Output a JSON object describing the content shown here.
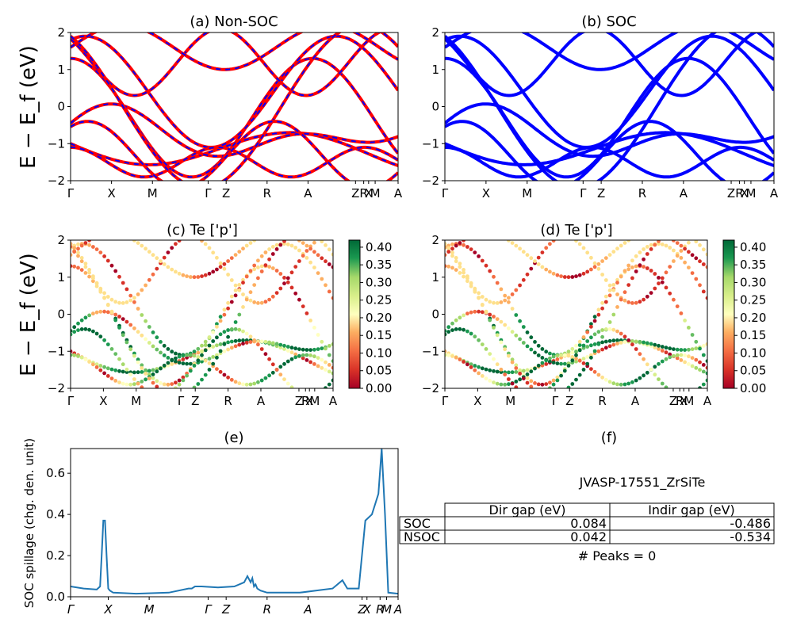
{
  "chart_data": [
    {
      "id": "a",
      "type": "line",
      "title": "(a) Non-SOC",
      "ylabel": "E − E_f (eV)",
      "ylim": [
        -2,
        2
      ],
      "yticks": [
        "2",
        "1",
        "0",
        "−1",
        "−2"
      ],
      "xtick_labels": [
        "Γ",
        "X",
        "M",
        "Γ",
        "Z",
        "R",
        "A",
        "Z",
        "R",
        "X",
        "M",
        "A"
      ],
      "series": [
        {
          "color": "#ff0000",
          "style": "solid"
        },
        {
          "color": "#0000ff",
          "style": "dashed"
        }
      ]
    },
    {
      "id": "b",
      "type": "line",
      "title": "(b) SOC",
      "ylim": [
        -2,
        2
      ],
      "yticks": [
        "2",
        "1",
        "0",
        "−1",
        "−2"
      ],
      "xtick_labels": [
        "Γ",
        "X",
        "M",
        "Γ",
        "Z",
        "R",
        "A",
        "Z",
        "R",
        "X",
        "M",
        "A"
      ],
      "series": [
        {
          "color": "#0000ff",
          "style": "solid"
        }
      ]
    },
    {
      "id": "c",
      "type": "scatter",
      "title": "(c)  Te ['p']",
      "ylabel": "E − E_f (eV)",
      "ylim": [
        -2,
        2
      ],
      "yticks": [
        "2",
        "1",
        "0",
        "−1",
        "−2"
      ],
      "xtick_labels": [
        "Γ",
        "X",
        "M",
        "Γ",
        "Z",
        "R",
        "A",
        "Z",
        "R",
        "X",
        "M",
        "A"
      ],
      "colorbar": {
        "cmap": "RdYlGn",
        "range": [
          0.0,
          0.42
        ],
        "ticks": [
          "0.40",
          "0.35",
          "0.30",
          "0.25",
          "0.20",
          "0.15",
          "0.10",
          "0.05",
          "0.00"
        ]
      }
    },
    {
      "id": "d",
      "type": "scatter",
      "title": "(d) Te ['p']",
      "ylim": [
        -2,
        2
      ],
      "yticks": [
        "2",
        "1",
        "0",
        "−1",
        "−2"
      ],
      "xtick_labels": [
        "Γ",
        "X",
        "M",
        "Γ",
        "Z",
        "R",
        "A",
        "Z",
        "R",
        "X",
        "M",
        "A"
      ],
      "colorbar": {
        "cmap": "RdYlGn",
        "range": [
          0.0,
          0.42
        ],
        "ticks": [
          "0.40",
          "0.35",
          "0.30",
          "0.25",
          "0.20",
          "0.15",
          "0.10",
          "0.05",
          "0.00"
        ]
      }
    },
    {
      "id": "e",
      "type": "line",
      "title": "(e)",
      "ylabel": "SOC spillage (chg. den. unit)",
      "ylim": [
        0,
        0.72
      ],
      "yticks": [
        "0.0",
        "0.2",
        "0.4",
        "0.6"
      ],
      "xtick_labels": [
        "Γ",
        "X",
        "M",
        "Γ",
        "Z",
        "R",
        "A",
        "Z",
        "X",
        "R",
        "M",
        "A"
      ],
      "color": "#1f77b4",
      "x": [
        0,
        0.04,
        0.08,
        0.09,
        0.095,
        0.1,
        0.105,
        0.11,
        0.115,
        0.12,
        0.13,
        0.2,
        0.3,
        0.36,
        0.37,
        0.38,
        0.4,
        0.45,
        0.5,
        0.53,
        0.54,
        0.55,
        0.555,
        0.56,
        0.565,
        0.57,
        0.58,
        0.6,
        0.7,
        0.8,
        0.83,
        0.845,
        0.855,
        0.88,
        0.9,
        0.92,
        0.94,
        0.95,
        0.96,
        0.97,
        1.0
      ],
      "y": [
        0.05,
        0.04,
        0.035,
        0.05,
        0.2,
        0.37,
        0.37,
        0.2,
        0.04,
        0.03,
        0.02,
        0.015,
        0.02,
        0.04,
        0.04,
        0.05,
        0.05,
        0.045,
        0.05,
        0.07,
        0.1,
        0.07,
        0.09,
        0.05,
        0.06,
        0.04,
        0.03,
        0.02,
        0.02,
        0.04,
        0.08,
        0.04,
        0.04,
        0.04,
        0.37,
        0.4,
        0.5,
        0.72,
        0.4,
        0.02,
        0.015
      ]
    }
  ],
  "table": {
    "title": "(f)",
    "name": "JVASP-17551_ZrSiTe",
    "headers": [
      "Dir gap (eV)",
      "Indir gap (eV)"
    ],
    "rows": [
      {
        "label": "SOC",
        "dir": "0.084",
        "indir": "-0.486"
      },
      {
        "label": "NSOC",
        "dir": "0.042",
        "indir": "-0.534"
      }
    ],
    "peaks": "# Peaks = 0"
  }
}
